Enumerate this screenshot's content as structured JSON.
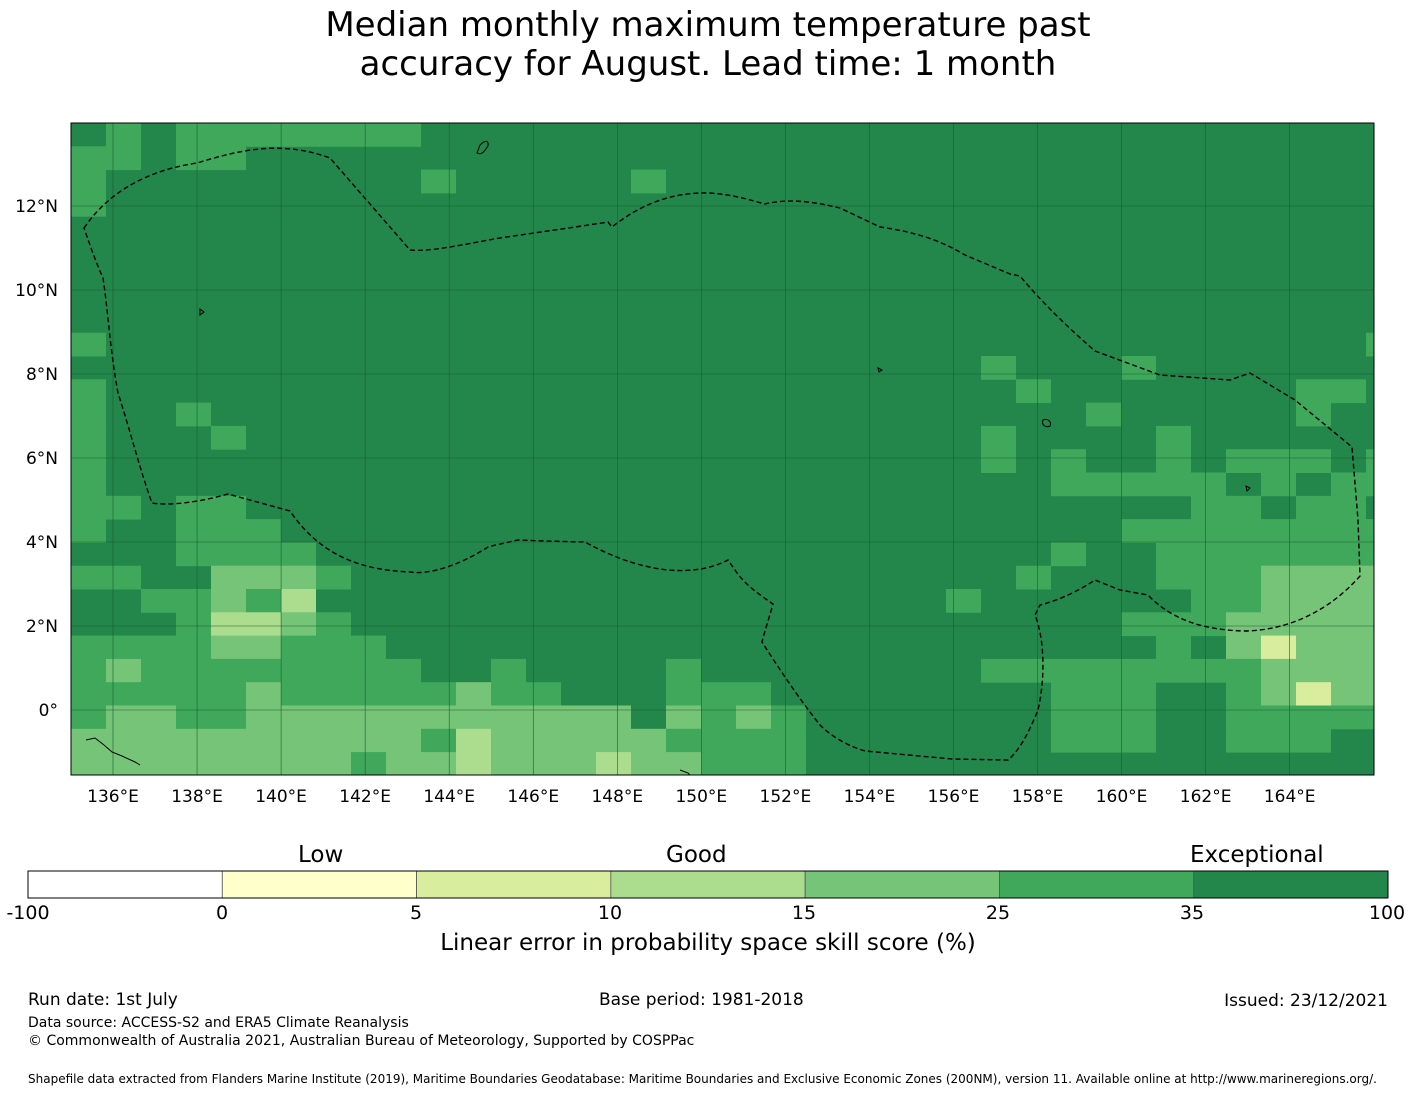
{
  "title": {
    "line1": "Median monthly maximum temperature past",
    "line2": "accuracy for August. Lead time: 1 month"
  },
  "map": {
    "lon_labels": [
      "136°E",
      "138°E",
      "140°E",
      "142°E",
      "144°E",
      "146°E",
      "148°E",
      "150°E",
      "152°E",
      "154°E",
      "156°E",
      "158°E",
      "160°E",
      "162°E",
      "164°E"
    ],
    "lat_labels": [
      "12°N",
      "10°N",
      "8°N",
      "6°N",
      "4°N",
      "2°N",
      "0°"
    ],
    "colors": {
      "exceptional": "#23864a",
      "good_high": "#3fa85b",
      "good_mid": "#76c478",
      "good_low": "#acdd8e",
      "low_high": "#d8ee9e",
      "low_low": "#ffffcc",
      "none": "#ffffff",
      "boundary": "#000000"
    }
  },
  "colorbar": {
    "categories": [
      "Low",
      "Good",
      "Exceptional"
    ],
    "ticks": [
      "-100",
      "0",
      "5",
      "10",
      "15",
      "25",
      "35",
      "100"
    ],
    "colors": [
      "#ffffff",
      "#ffffcc",
      "#d8ee9e",
      "#acdd8e",
      "#76c478",
      "#3fa85b",
      "#23864a"
    ],
    "title": "Linear error in probability space skill score (%)"
  },
  "footer": {
    "run_date": "Run date: 1st July",
    "base_period": "Base period: 1981-2018",
    "issued": "Issued: 23/12/2021",
    "data_source": "Data source: ACCESS-S2 and ERA5 Climate Reanalysis",
    "copyright": "© Commonwealth of Australia 2021, Australian Bureau of Meteorology, Supported by COSPPac",
    "shapefile": "Shapefile data extracted from Flanders Marine Institute (2019), Maritime Boundaries Geodatabase: Maritime Boundaries and Exclusive Economic Zones (200NM), version 11. Available online at http://www.marineregions.org/."
  }
}
